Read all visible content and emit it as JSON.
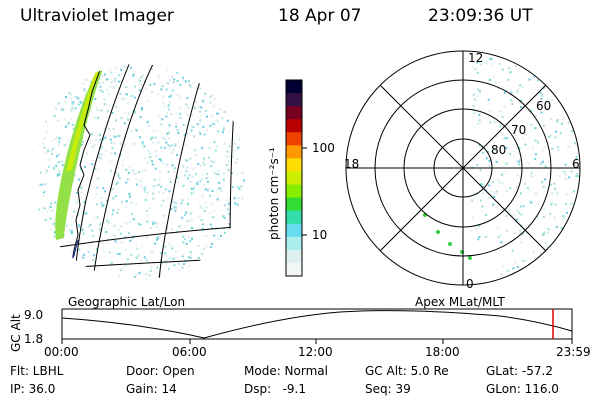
{
  "header": {
    "title": "Ultraviolet Imager",
    "date": "18 Apr 07",
    "time": "23:09:36 UT"
  },
  "colorbar": {
    "unit_label": "photon cm⁻²s⁻¹",
    "ticks": [
      "100",
      "10"
    ],
    "colors": [
      "#000033",
      "#331144",
      "#770022",
      "#bb0000",
      "#ee4400",
      "#ff9900",
      "#ffdd00",
      "#ccee00",
      "#88ee00",
      "#33dd33",
      "#33ddaa",
      "#66ddee",
      "#aaeeee",
      "#ddf0f0",
      "#f2f6f6"
    ]
  },
  "geo_panel": {
    "caption": "Geographic Lat/Lon"
  },
  "polar_panel": {
    "caption": "Apex MLat/MLT",
    "mlt_labels": {
      "top": "12",
      "left": "18",
      "right": "6",
      "bottom": "0"
    },
    "lat_labels": [
      "60",
      "70",
      "80"
    ]
  },
  "altitude_plot": {
    "ylabel": "GC Alt",
    "yticks": [
      "9.0",
      "1.8"
    ],
    "xticks": [
      "00:00",
      "06:00",
      "12:00",
      "18:00",
      "23:59"
    ],
    "marker_color": "#dd0000"
  },
  "info": {
    "flt": "Flt: LBHL",
    "ip": "IP: 36.0",
    "door": "Door: Open",
    "gain": "Gain: 14",
    "mode": "Mode: Normal",
    "dsp": "Dsp:   -9.1",
    "gcalt": "GC Alt: 5.0 Re",
    "seq": "Seq: 39",
    "glat": "GLat: -57.2",
    "glon": "GLon: 116.0"
  }
}
